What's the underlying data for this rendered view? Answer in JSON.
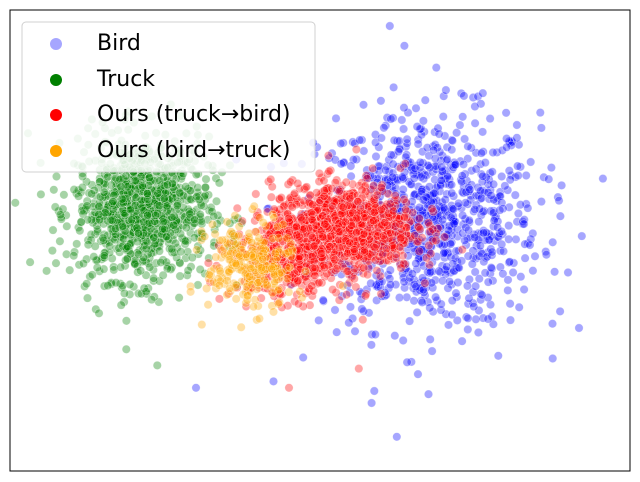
{
  "chart_data": {
    "type": "scatter",
    "title": "",
    "xlabel": "",
    "ylabel": "",
    "xticks_visible": false,
    "yticks_visible": false,
    "xlim": [
      -4.0,
      4.0
    ],
    "ylim": [
      -3.6,
      3.6
    ],
    "grid": false,
    "legend_position": "upper-left",
    "point_alpha": 0.35,
    "series": [
      {
        "name": "Bird",
        "color": "#0000ff",
        "clusters": [
          {
            "center": [
              1.4,
              0.3
            ],
            "spread": [
              1.15,
              1.35
            ],
            "count": 900
          }
        ],
        "outliers": [
          [
            0.9,
            3.35
          ],
          [
            1.5,
            2.7
          ],
          [
            2.1,
            2.3
          ],
          [
            3.0,
            -1.3
          ],
          [
            3.2,
            -0.5
          ],
          [
            -1.6,
            -2.3
          ],
          [
            0.7,
            -2.35
          ],
          [
            1.4,
            -2.4
          ],
          [
            -0.6,
            -2.2
          ],
          [
            2.3,
            -1.8
          ]
        ]
      },
      {
        "name": "Truck",
        "color": "#008000",
        "clusters": [
          {
            "center": [
              -2.3,
              0.5
            ],
            "spread": [
              0.7,
              0.9
            ],
            "count": 1000
          }
        ],
        "outliers": [
          [
            -2.1,
            -1.95
          ],
          [
            -3.0,
            -0.9
          ],
          [
            -2.5,
            -1.7
          ],
          [
            -1.3,
            0.9
          ],
          [
            -3.4,
            1.0
          ]
        ]
      },
      {
        "name": "Ours (truck→bird)",
        "color": "#ff0000",
        "clusters": [
          {
            "center": [
              0.3,
              0.2
            ],
            "spread": [
              0.75,
              0.55
            ],
            "count": 1000
          },
          {
            "center": [
              -0.4,
              -0.3
            ],
            "spread": [
              0.6,
              0.5
            ],
            "count": 350
          }
        ],
        "outliers": [
          [
            -0.4,
            -2.3
          ],
          [
            0.5,
            -2.0
          ],
          [
            1.1,
            1.2
          ]
        ]
      },
      {
        "name": "Ours (bird→truck)",
        "color": "#ffa500",
        "clusters": [
          {
            "center": [
              -0.9,
              -0.4
            ],
            "spread": [
              0.45,
              0.55
            ],
            "count": 260
          }
        ],
        "outliers": [
          [
            -1.3,
            -0.7
          ]
        ]
      }
    ]
  }
}
